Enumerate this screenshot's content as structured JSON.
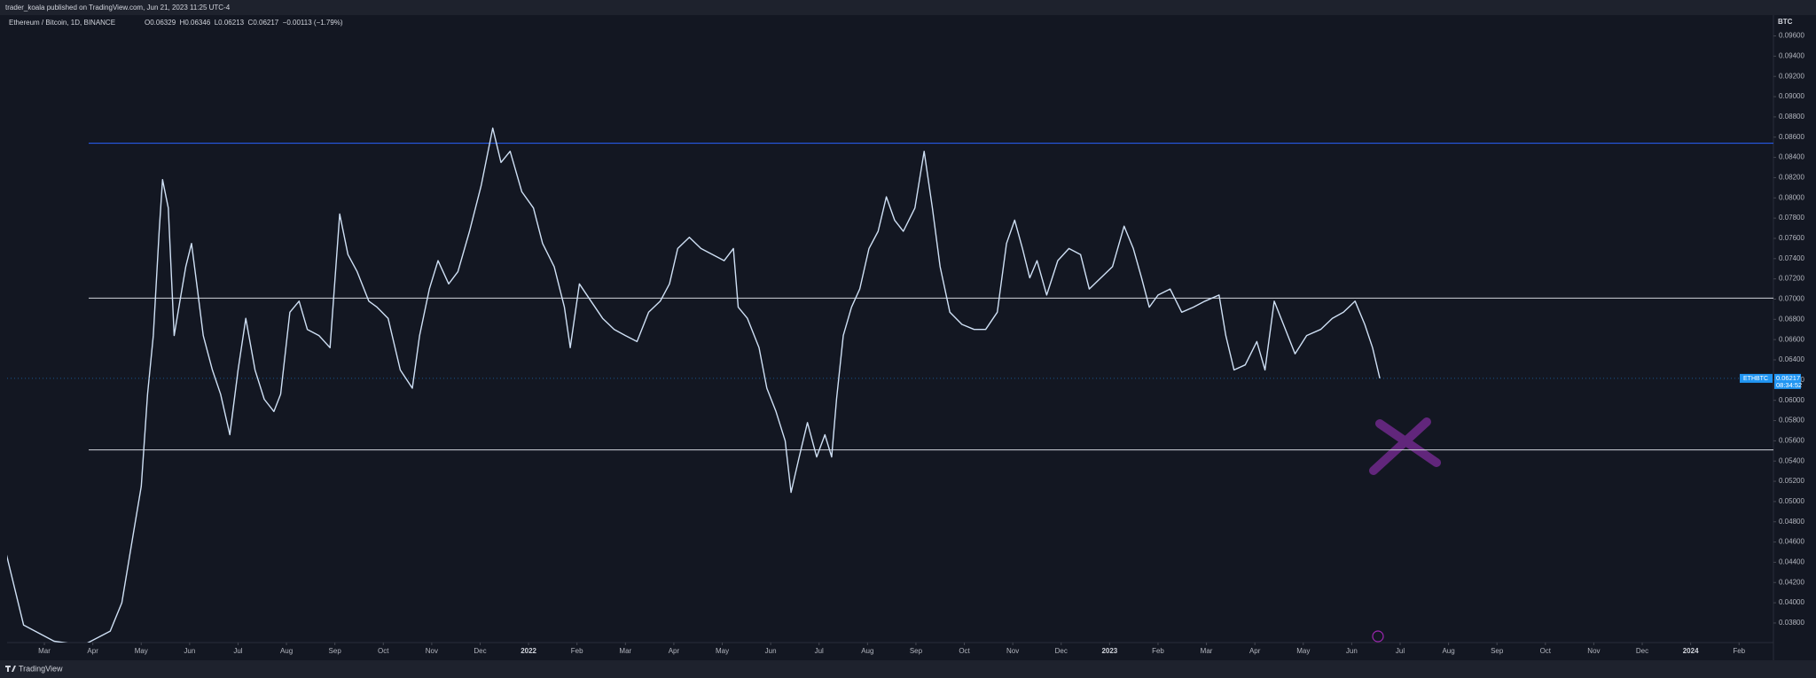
{
  "header": {
    "published": "trader_koala published on TradingView.com, Jun 21, 2023 11:25 UTC-4"
  },
  "chart_data": {
    "type": "line",
    "title": "Ethereum / Bitcoin, 1D, BINANCE",
    "ohlc": "O0.06329  H0.06346  L0.06213  C0.06217  −0.00113 (−1.79%)",
    "y_axis_label": "BTC",
    "price_tag": {
      "symbol": "ETHBTC",
      "price": "0.06217",
      "countdown": "08:34:52"
    },
    "xlim": [
      1.23,
      37.71
    ],
    "ylim": [
      0.03607,
      0.09806
    ],
    "levels": [
      0.0854,
      0.0701,
      0.0551
    ],
    "series": [
      {
        "name": "ETHBTC",
        "color": "#cfe0f5",
        "x": [
          1.21,
          1.57,
          2.2,
          2.8,
          3.36,
          3.6,
          3.84,
          4.0,
          4.13,
          4.25,
          4.37,
          4.44,
          4.56,
          4.68,
          4.8,
          4.92,
          5.04,
          5.16,
          5.28,
          5.47,
          5.64,
          5.83,
          6.0,
          6.16,
          6.35,
          6.54,
          6.74,
          6.88,
          7.07,
          7.26,
          7.43,
          7.67,
          7.9,
          8.1,
          8.27,
          8.46,
          8.7,
          8.87,
          9.1,
          9.35,
          9.6,
          9.75,
          9.95,
          10.13,
          10.35,
          10.54,
          10.78,
          11.02,
          11.26,
          11.43,
          11.62,
          11.86,
          12.1,
          12.29,
          12.53,
          12.74,
          12.86,
          13.05,
          13.29,
          13.53,
          13.77,
          14.0,
          14.24,
          14.48,
          14.72,
          14.91,
          15.08,
          15.32,
          15.56,
          15.8,
          16.04,
          16.23,
          16.33,
          16.52,
          16.76,
          16.92,
          17.11,
          17.3,
          17.42,
          17.59,
          17.76,
          17.95,
          18.12,
          18.26,
          18.36,
          18.5,
          18.67,
          18.84,
          19.03,
          19.22,
          19.39,
          19.56,
          19.74,
          19.98,
          20.17,
          20.34,
          20.5,
          20.7,
          20.95,
          21.2,
          21.44,
          21.68,
          21.87,
          22.04,
          22.2,
          22.35,
          22.5,
          22.7,
          22.93,
          23.16,
          23.4,
          23.58,
          23.82,
          24.06,
          24.3,
          24.49,
          24.66,
          24.82,
          25.0,
          25.25,
          25.49,
          25.73,
          25.97,
          26.26,
          26.4,
          26.57,
          26.8,
          27.04,
          27.21,
          27.4,
          27.59,
          27.83,
          28.07,
          28.36,
          28.6,
          28.83,
          29.07,
          29.27,
          29.43,
          29.58
        ],
        "values": [
          0.0449,
          0.0378,
          0.0362,
          0.0358,
          0.0372,
          0.04,
          0.0469,
          0.0515,
          0.0606,
          0.0664,
          0.0767,
          0.0818,
          0.079,
          0.0664,
          0.0698,
          0.0732,
          0.0755,
          0.071,
          0.0664,
          0.063,
          0.0606,
          0.0566,
          0.063,
          0.0681,
          0.063,
          0.0601,
          0.0589,
          0.0606,
          0.0687,
          0.0698,
          0.067,
          0.0664,
          0.0652,
          0.0784,
          0.0744,
          0.0727,
          0.0698,
          0.0692,
          0.0681,
          0.063,
          0.0612,
          0.0664,
          0.071,
          0.0738,
          0.0715,
          0.0727,
          0.0767,
          0.0812,
          0.0869,
          0.0835,
          0.0846,
          0.0806,
          0.079,
          0.0755,
          0.0732,
          0.0692,
          0.0652,
          0.0715,
          0.0698,
          0.0681,
          0.067,
          0.0664,
          0.0658,
          0.0687,
          0.0698,
          0.0715,
          0.075,
          0.0761,
          0.075,
          0.0744,
          0.0738,
          0.075,
          0.0692,
          0.0681,
          0.0652,
          0.0612,
          0.0589,
          0.056,
          0.0509,
          0.0544,
          0.0578,
          0.0544,
          0.0566,
          0.0544,
          0.0601,
          0.0664,
          0.0692,
          0.071,
          0.075,
          0.0767,
          0.0801,
          0.0778,
          0.0767,
          0.079,
          0.0846,
          0.079,
          0.0732,
          0.0687,
          0.0675,
          0.067,
          0.067,
          0.0687,
          0.0755,
          0.0778,
          0.075,
          0.0721,
          0.0738,
          0.0704,
          0.0738,
          0.075,
          0.0744,
          0.071,
          0.0721,
          0.0732,
          0.0772,
          0.075,
          0.0721,
          0.0692,
          0.0704,
          0.071,
          0.0687,
          0.0692,
          0.0698,
          0.0704,
          0.0664,
          0.063,
          0.0635,
          0.0658,
          0.063,
          0.0698,
          0.0675,
          0.0646,
          0.0664,
          0.067,
          0.0681,
          0.0687,
          0.0698,
          0.0675,
          0.0652,
          0.06217
        ]
      }
    ],
    "yticks": [
      {
        "value": 0.038,
        "label": "0.03800"
      },
      {
        "value": 0.04,
        "label": "0.04000"
      },
      {
        "value": 0.042,
        "label": "0.04200"
      },
      {
        "value": 0.044,
        "label": "0.04400"
      },
      {
        "value": 0.046,
        "label": "0.04600"
      },
      {
        "value": 0.048,
        "label": "0.04800"
      },
      {
        "value": 0.05,
        "label": "0.05000"
      },
      {
        "value": 0.052,
        "label": "0.05200"
      },
      {
        "value": 0.054,
        "label": "0.05400"
      },
      {
        "value": 0.056,
        "label": "0.05600"
      },
      {
        "value": 0.058,
        "label": "0.05800"
      },
      {
        "value": 0.06,
        "label": "0.06000"
      },
      {
        "value": 0.062,
        "label": "0.06200"
      },
      {
        "value": 0.064,
        "label": "0.06400"
      },
      {
        "value": 0.066,
        "label": "0.06600"
      },
      {
        "value": 0.068,
        "label": "0.06800"
      },
      {
        "value": 0.07,
        "label": "0.07000"
      },
      {
        "value": 0.072,
        "label": "0.07200"
      },
      {
        "value": 0.074,
        "label": "0.07400"
      },
      {
        "value": 0.076,
        "label": "0.07600"
      },
      {
        "value": 0.078,
        "label": "0.07800"
      },
      {
        "value": 0.08,
        "label": "0.08000"
      },
      {
        "value": 0.082,
        "label": "0.08200"
      },
      {
        "value": 0.084,
        "label": "0.08400"
      },
      {
        "value": 0.086,
        "label": "0.08600"
      },
      {
        "value": 0.088,
        "label": "0.08800"
      },
      {
        "value": 0.09,
        "label": "0.09000"
      },
      {
        "value": 0.092,
        "label": "0.09200"
      },
      {
        "value": 0.094,
        "label": "0.09400"
      },
      {
        "value": 0.096,
        "label": "0.09600"
      }
    ],
    "xticks": [
      {
        "value": 2,
        "label": "Mar"
      },
      {
        "value": 3,
        "label": "Apr"
      },
      {
        "value": 4,
        "label": "May"
      },
      {
        "value": 5,
        "label": "Jun"
      },
      {
        "value": 6,
        "label": "Jul"
      },
      {
        "value": 7,
        "label": "Aug"
      },
      {
        "value": 8,
        "label": "Sep"
      },
      {
        "value": 9,
        "label": "Oct"
      },
      {
        "value": 10,
        "label": "Nov"
      },
      {
        "value": 11,
        "label": "Dec"
      },
      {
        "value": 12,
        "label": "2022"
      },
      {
        "value": 13,
        "label": "Feb"
      },
      {
        "value": 14,
        "label": "Mar"
      },
      {
        "value": 15,
        "label": "Apr"
      },
      {
        "value": 16,
        "label": "May"
      },
      {
        "value": 17,
        "label": "Jun"
      },
      {
        "value": 18,
        "label": "Jul"
      },
      {
        "value": 19,
        "label": "Aug"
      },
      {
        "value": 20,
        "label": "Sep"
      },
      {
        "value": 21,
        "label": "Oct"
      },
      {
        "value": 22,
        "label": "Nov"
      },
      {
        "value": 23,
        "label": "Dec"
      },
      {
        "value": 24,
        "label": "2023"
      },
      {
        "value": 25,
        "label": "Feb"
      },
      {
        "value": 26,
        "label": "Mar"
      },
      {
        "value": 27,
        "label": "Apr"
      },
      {
        "value": 28,
        "label": "May"
      },
      {
        "value": 29,
        "label": "Jun"
      },
      {
        "value": 30,
        "label": "Jul"
      },
      {
        "value": 31,
        "label": "Aug"
      },
      {
        "value": 32,
        "label": "Sep"
      },
      {
        "value": 33,
        "label": "Oct"
      },
      {
        "value": 34,
        "label": "Nov"
      },
      {
        "value": 35,
        "label": "Dec"
      },
      {
        "value": 36,
        "label": "2024"
      },
      {
        "value": 37,
        "label": "Feb"
      }
    ]
  },
  "footer": {
    "brand": "TradingView"
  }
}
